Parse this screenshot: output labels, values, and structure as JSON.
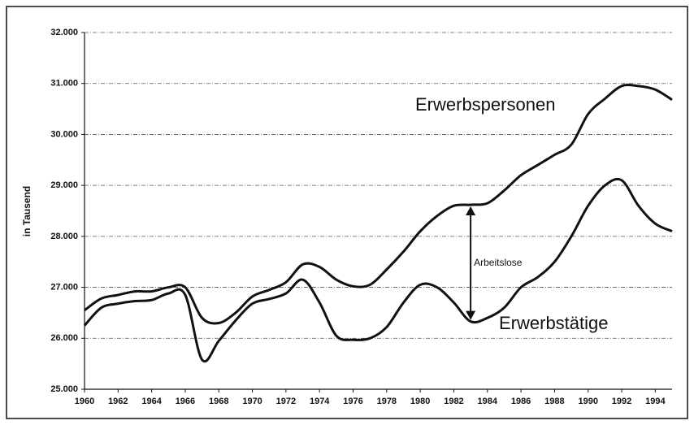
{
  "chart_data": {
    "type": "line",
    "y_label": "in Tausend",
    "annotation": "Arbeitslose",
    "x": [
      1960,
      1961,
      1962,
      1963,
      1964,
      1965,
      1966,
      1967,
      1968,
      1969,
      1970,
      1971,
      1972,
      1973,
      1974,
      1975,
      1976,
      1977,
      1978,
      1979,
      1980,
      1981,
      1982,
      1983,
      1984,
      1985,
      1986,
      1987,
      1988,
      1989,
      1990,
      1991,
      1992,
      1993,
      1994,
      1995
    ],
    "series": [
      {
        "name": "Erwerbspersonen",
        "color": "#111111",
        "values": [
          26550,
          26780,
          26850,
          26920,
          26920,
          27000,
          27000,
          26400,
          26300,
          26500,
          26820,
          26950,
          27100,
          27450,
          27400,
          27150,
          27020,
          27050,
          27350,
          27700,
          28100,
          28400,
          28600,
          28620,
          28650,
          28900,
          29200,
          29400,
          29600,
          29800,
          30400,
          30700,
          30950,
          30950,
          30880,
          30680
        ]
      },
      {
        "name": "Erwerbstätige",
        "color": "#111111",
        "values": [
          26250,
          26600,
          26680,
          26730,
          26750,
          26880,
          26850,
          25580,
          25950,
          26350,
          26680,
          26770,
          26880,
          27150,
          26700,
          26050,
          25970,
          26000,
          26220,
          26700,
          27050,
          27000,
          26700,
          26330,
          26400,
          26600,
          27000,
          27200,
          27500,
          28000,
          28600,
          29000,
          29100,
          28600,
          28250,
          28100
        ]
      }
    ],
    "xlim": [
      1960,
      1995
    ],
    "xticks": [
      1960,
      1962,
      1964,
      1966,
      1968,
      1970,
      1972,
      1974,
      1976,
      1978,
      1980,
      1982,
      1984,
      1986,
      1988,
      1990,
      1992,
      1994
    ],
    "ylim": [
      25000,
      32000
    ],
    "yticks": [
      {
        "value": 25000,
        "label": "25.000"
      },
      {
        "value": 26000,
        "label": "26.000"
      },
      {
        "value": 27000,
        "label": "27.000"
      },
      {
        "value": 28000,
        "label": "28.000"
      },
      {
        "value": 29000,
        "label": "29.000"
      },
      {
        "value": 30000,
        "label": "30.000"
      },
      {
        "value": 31000,
        "label": "31.000"
      },
      {
        "value": 32000,
        "label": "32.000"
      }
    ],
    "grid": true
  }
}
